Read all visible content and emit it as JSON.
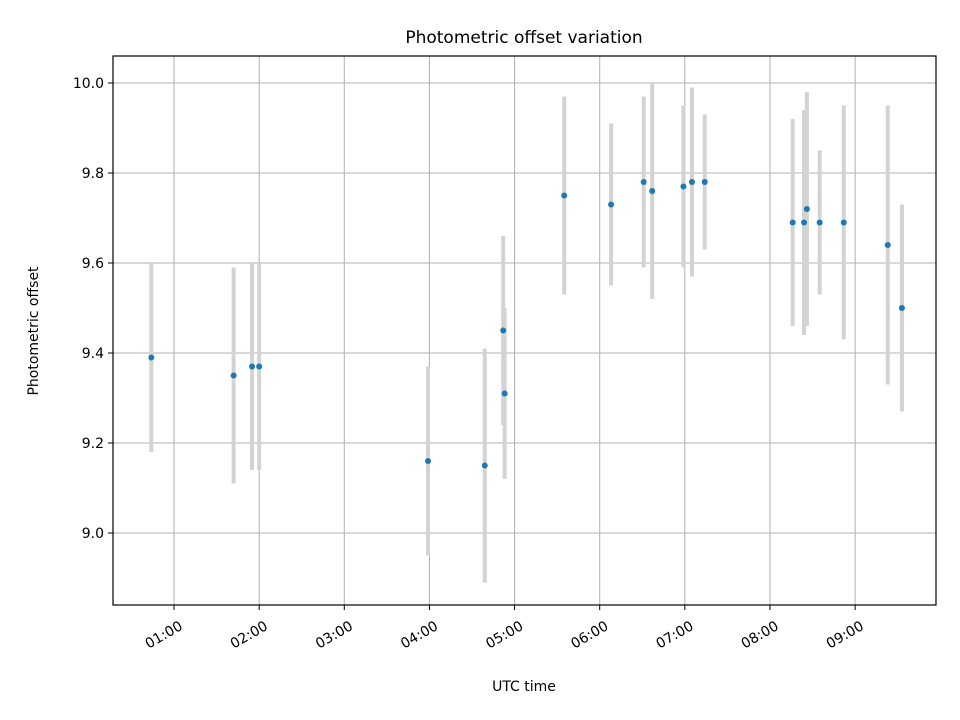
{
  "chart_data": {
    "type": "scatter",
    "title": "Photometric offset variation",
    "xlabel": "UTC time",
    "ylabel": "Photometric offset",
    "x_ticks": [
      "01:00",
      "02:00",
      "03:00",
      "04:00",
      "05:00",
      "06:00",
      "07:00",
      "08:00",
      "09:00"
    ],
    "y_ticks": [
      "9.0",
      "9.2",
      "9.4",
      "9.6",
      "9.8",
      "10.0"
    ],
    "xlim": [
      "00:17",
      "09:57"
    ],
    "ylim": [
      8.84,
      10.06
    ],
    "grid": true,
    "marker_color": "#1f77b4",
    "errorbar_color": "#d3d3d3",
    "series": [
      {
        "points": [
          {
            "x": "00:44",
            "y": 9.39,
            "yerr": 0.21
          },
          {
            "x": "01:42",
            "y": 9.35,
            "yerr": 0.24
          },
          {
            "x": "01:55",
            "y": 9.37,
            "yerr": 0.23
          },
          {
            "x": "02:00",
            "y": 9.37,
            "yerr": 0.23
          },
          {
            "x": "03:59",
            "y": 9.16,
            "yerr": 0.21
          },
          {
            "x": "04:39",
            "y": 9.15,
            "yerr": 0.26
          },
          {
            "x": "04:52",
            "y": 9.45,
            "yerr": 0.21
          },
          {
            "x": "04:53",
            "y": 9.31,
            "yerr": 0.19
          },
          {
            "x": "05:35",
            "y": 9.75,
            "yerr": 0.22
          },
          {
            "x": "06:08",
            "y": 9.73,
            "yerr": 0.18
          },
          {
            "x": "06:31",
            "y": 9.78,
            "yerr": 0.19
          },
          {
            "x": "06:37",
            "y": 9.76,
            "yerr": 0.24
          },
          {
            "x": "06:59",
            "y": 9.77,
            "yerr": 0.18
          },
          {
            "x": "07:05",
            "y": 9.78,
            "yerr": 0.21
          },
          {
            "x": "07:14",
            "y": 9.78,
            "yerr": 0.15
          },
          {
            "x": "08:16",
            "y": 9.69,
            "yerr": 0.23
          },
          {
            "x": "08:24",
            "y": 9.69,
            "yerr": 0.25
          },
          {
            "x": "08:26",
            "y": 9.72,
            "yerr": 0.26
          },
          {
            "x": "08:35",
            "y": 9.69,
            "yerr": 0.16
          },
          {
            "x": "08:52",
            "y": 9.69,
            "yerr": 0.26
          },
          {
            "x": "09:23",
            "y": 9.64,
            "yerr": 0.31
          },
          {
            "x": "09:33",
            "y": 9.5,
            "yerr": 0.23
          }
        ]
      }
    ]
  }
}
